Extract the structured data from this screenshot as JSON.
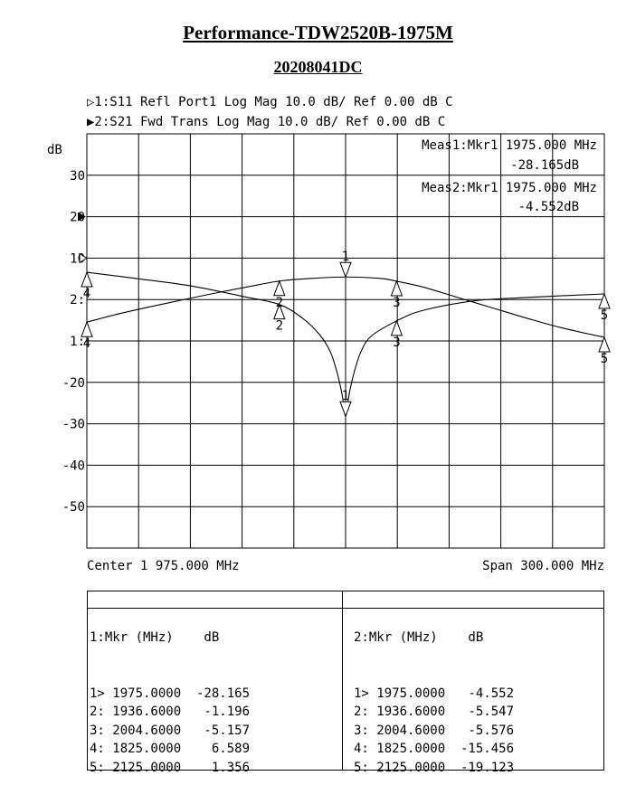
{
  "title": "Performance-TDW2520B-1975M",
  "subtitle": "20208041DC",
  "traces": [
    {
      "symbol": "▷",
      "line": "1:S11 Refl Port1   Log Mag  10.0 dB/ Ref   0.00 dB  C"
    },
    {
      "symbol": "▶",
      "line": "2:S21 Fwd Trans    Log Mag  10.0 dB/ Ref   0.00 dB  C"
    }
  ],
  "meas": {
    "m1_label": "Meas1:Mkr1 1975.000 MHz",
    "m1_value": "-28.165dB",
    "m2_label": "Meas2:Mkr1 1975.000 MHz",
    "m2_value": "-4.552dB"
  },
  "footer": {
    "center": "Center 1 975.000 MHz",
    "span": "Span 300.000 MHz"
  },
  "chart_data": {
    "type": "line",
    "ylabel": "dB",
    "ytick_labels": [
      "30",
      "20",
      "10",
      "2:",
      "1:",
      "-20",
      "-30",
      "-40",
      "-50"
    ],
    "xlim_mhz": [
      1825,
      2125
    ],
    "ylim_div": [
      -6,
      4
    ],
    "divisions_x": 10,
    "grid": true,
    "series": [
      {
        "name": "S11",
        "ref_div": 0,
        "scale_db_per_div": 10,
        "x": [
          1825,
          1855,
          1885,
          1915,
          1936.6,
          1950,
          1960,
          1966,
          1970,
          1973,
          1975,
          1977,
          1980,
          1984,
          1990,
          2004.6,
          2020,
          2050,
          2080,
          2125
        ],
        "y": [
          6.589,
          5.0,
          3.3,
          0.8,
          -1.196,
          -4.5,
          -8.5,
          -12.5,
          -17.5,
          -23,
          -28.165,
          -23,
          -17.5,
          -12.5,
          -8.8,
          -5.157,
          -2.6,
          -0.3,
          0.5,
          1.356
        ]
      },
      {
        "name": "S21",
        "ref_div": 1,
        "scale_db_per_div": 10,
        "x": [
          1825,
          1845,
          1870,
          1900,
          1925,
          1936.6,
          1955,
          1975,
          1995,
          2004.6,
          2020,
          2040,
          2060,
          2080,
          2100,
          2125
        ],
        "y": [
          -15.456,
          -13.3,
          -11.0,
          -8.4,
          -6.4,
          -5.547,
          -4.9,
          -4.552,
          -4.9,
          -5.576,
          -7.0,
          -9.5,
          -12.0,
          -14.5,
          -16.8,
          -19.123
        ]
      }
    ],
    "markers": [
      {
        "num": "1",
        "s11_db": "-28.165",
        "s21_db": "-4.552",
        "freq_mhz": 1975.0
      },
      {
        "num": "2",
        "freq_mhz": 1936.6
      },
      {
        "num": "3",
        "freq_mhz": 2004.6
      },
      {
        "num": "4",
        "freq_mhz": 1825.0
      },
      {
        "num": "5",
        "freq_mhz": 2125.0
      }
    ]
  },
  "marker_table": {
    "left": {
      "header": "1:Mkr (MHz)    dB",
      "rows": [
        "1> 1975.0000  -28.165",
        "2: 1936.6000   -1.196",
        "3: 2004.6000   -5.157",
        "4: 1825.0000    6.589",
        "5: 2125.0000    1.356"
      ]
    },
    "right": {
      "header": "2:Mkr (MHz)    dB",
      "rows": [
        "1> 1975.0000   -4.552",
        "2: 1936.6000   -5.547",
        "3: 2004.6000   -5.576",
        "4: 1825.0000  -15.456",
        "5: 2125.0000  -19.123"
      ]
    }
  }
}
